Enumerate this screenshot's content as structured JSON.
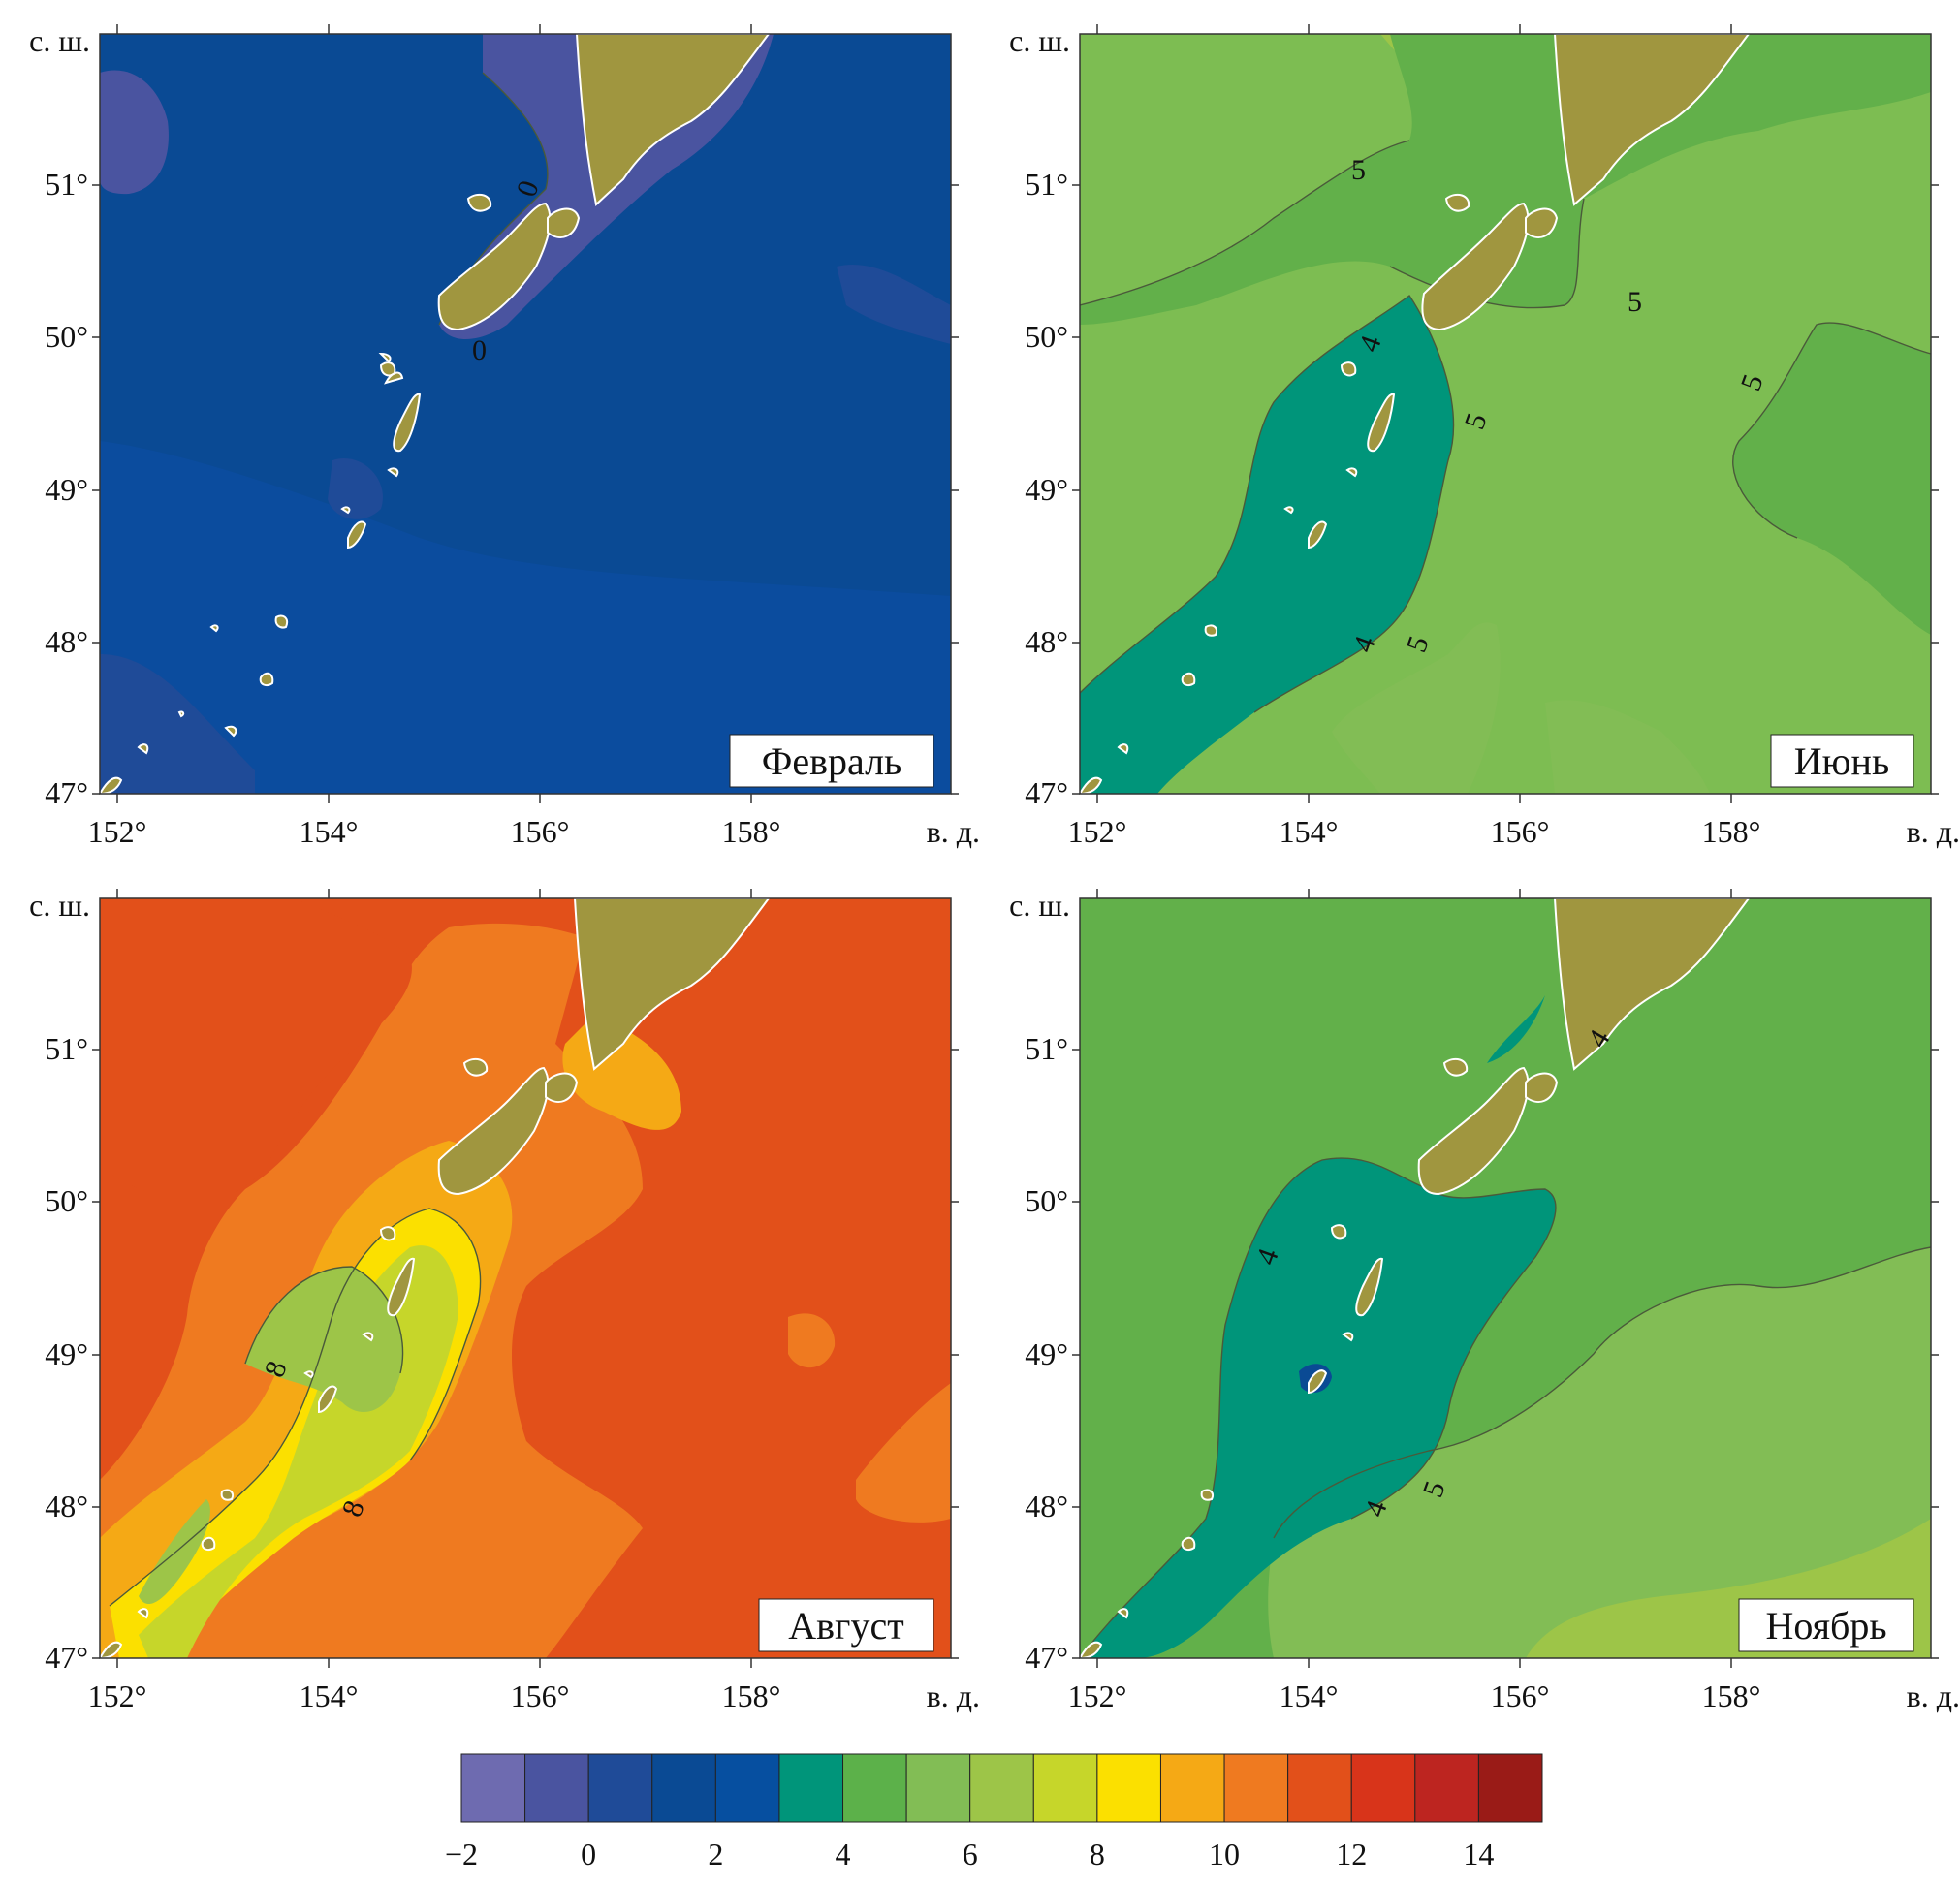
{
  "axes": {
    "lat_title": "с. ш.",
    "lon_title": "в. д.",
    "lat_labels": [
      "51°",
      "50°",
      "49°",
      "48°",
      "47°"
    ],
    "lon_labels": [
      "152°",
      "154°",
      "156°",
      "158°"
    ]
  },
  "panels": [
    {
      "month": "Февраль",
      "background": "#0a4a94",
      "isolines": [
        "0",
        "0"
      ]
    },
    {
      "month": "Июнь",
      "background": "#7dbd52",
      "isolines": [
        "5",
        "5",
        "5",
        "5",
        "5",
        "4",
        "4"
      ]
    },
    {
      "month": "Август",
      "background": "#e2501a",
      "isolines": [
        "8",
        "8"
      ]
    },
    {
      "month": "Ноябрь",
      "background": "#62b04a",
      "isolines": [
        "4",
        "4",
        "4",
        "5"
      ]
    }
  ],
  "colorbar": {
    "colors": [
      "#6e6bb0",
      "#4a54a0",
      "#1f4b98",
      "#0a4a94",
      "#064fa0",
      "#00957a",
      "#5cb14a",
      "#82bd55",
      "#9dc548",
      "#c6d62a",
      "#fbe000",
      "#f5a915",
      "#ef7a20",
      "#e2501a",
      "#d8341a",
      "#bd2520",
      "#9a1b17"
    ],
    "tick_labels": [
      "−2",
      "0",
      "2",
      "4",
      "6",
      "8",
      "10",
      "12",
      "14"
    ]
  }
}
